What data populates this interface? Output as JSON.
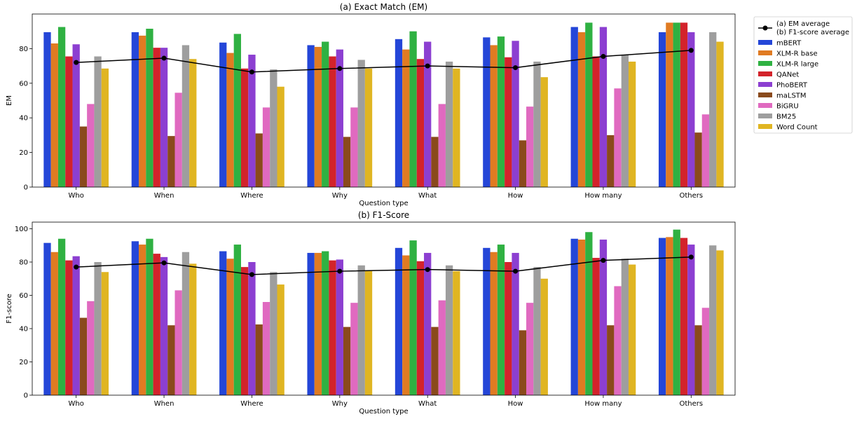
{
  "colors": {
    "mBERT": "#2446d8",
    "XLM-R base": "#e07b22",
    "XLM-R large": "#2fb142",
    "QANet": "#d3232b",
    "PhoBERT": "#8c3fd1",
    "maLSTM": "#8a4a1c",
    "BiGRU": "#e06ac0",
    "BM25": "#9e9e9e",
    "Word Count": "#e0b522",
    "average": "#000000"
  },
  "legend": {
    "average_labels": [
      "(a) EM average",
      "(b) F1-score average"
    ]
  },
  "chart_data": [
    {
      "type": "bar",
      "title": "(a) Exact Match (EM)",
      "xlabel": "Question type",
      "ylabel": "EM",
      "ylim": [
        0,
        100
      ],
      "yticks": [
        0,
        20,
        40,
        60,
        80
      ],
      "categories": [
        "Who",
        "When",
        "Where",
        "Why",
        "What",
        "How",
        "How many",
        "Others"
      ],
      "series": [
        {
          "name": "mBERT",
          "values": [
            89.5,
            89.5,
            83.5,
            82,
            85.5,
            86.5,
            92.5,
            89.5
          ]
        },
        {
          "name": "XLM-R base",
          "values": [
            83,
            87.5,
            77.5,
            81,
            79.5,
            82,
            89.5,
            95
          ]
        },
        {
          "name": "XLM-R large",
          "values": [
            92.5,
            91.5,
            88.5,
            84,
            90,
            87,
            95,
            95
          ]
        },
        {
          "name": "QANet",
          "values": [
            75.5,
            80.5,
            68.5,
            75.5,
            74,
            75,
            75.5,
            95
          ]
        },
        {
          "name": "PhoBERT",
          "values": [
            82.5,
            80.5,
            76.5,
            79.5,
            84,
            84.5,
            92.5,
            89.5
          ]
        },
        {
          "name": "maLSTM",
          "values": [
            35,
            29.5,
            31,
            29,
            29,
            27,
            30,
            31.5
          ]
        },
        {
          "name": "BiGRU",
          "values": [
            48,
            54.5,
            46,
            46,
            48,
            46.5,
            57,
            42
          ]
        },
        {
          "name": "BM25",
          "values": [
            75.5,
            82,
            68,
            73.5,
            72.5,
            72.5,
            76.5,
            89.5
          ]
        },
        {
          "name": "Word Count",
          "values": [
            68.5,
            74,
            58,
            68.5,
            68.5,
            63.5,
            72.5,
            84
          ]
        }
      ],
      "average": {
        "name": "(a) EM average",
        "values": [
          72,
          74.5,
          66.5,
          68.5,
          70,
          69,
          75.5,
          79
        ]
      }
    },
    {
      "type": "bar",
      "title": "(b) F1-Score",
      "xlabel": "Question type",
      "ylabel": "F1-score",
      "ylim": [
        0,
        104
      ],
      "yticks": [
        0,
        20,
        40,
        60,
        80,
        100
      ],
      "categories": [
        "Who",
        "When",
        "Where",
        "Why",
        "What",
        "How",
        "How many",
        "Others"
      ],
      "series": [
        {
          "name": "mBERT",
          "values": [
            91.5,
            92.5,
            86.5,
            85.5,
            88.5,
            88.5,
            94,
            94.5
          ]
        },
        {
          "name": "XLM-R base",
          "values": [
            86,
            90.5,
            82,
            85.5,
            84,
            86,
            93.5,
            95
          ]
        },
        {
          "name": "XLM-R large",
          "values": [
            94,
            94,
            90.5,
            86.5,
            93,
            90.5,
            98,
            99.5
          ]
        },
        {
          "name": "QANet",
          "values": [
            81,
            85,
            77,
            81,
            80.5,
            80,
            82.5,
            94.5
          ]
        },
        {
          "name": "PhoBERT",
          "values": [
            83.5,
            83,
            80,
            81.5,
            85.5,
            85.5,
            93.5,
            90.5
          ]
        },
        {
          "name": "maLSTM",
          "values": [
            46.5,
            42,
            42.5,
            41,
            41,
            39,
            42,
            42
          ]
        },
        {
          "name": "BiGRU",
          "values": [
            56.5,
            63,
            56,
            55.5,
            57,
            55.5,
            65.5,
            52.5
          ]
        },
        {
          "name": "BM25",
          "values": [
            80,
            86,
            74,
            78,
            78,
            77,
            82,
            90
          ]
        },
        {
          "name": "Word Count",
          "values": [
            74,
            79,
            66.5,
            74.5,
            74.5,
            70,
            78.5,
            87
          ]
        }
      ],
      "average": {
        "name": "(b) F1-score average",
        "values": [
          77,
          79.5,
          72.5,
          74.5,
          75.5,
          74.5,
          81,
          83
        ]
      }
    }
  ]
}
